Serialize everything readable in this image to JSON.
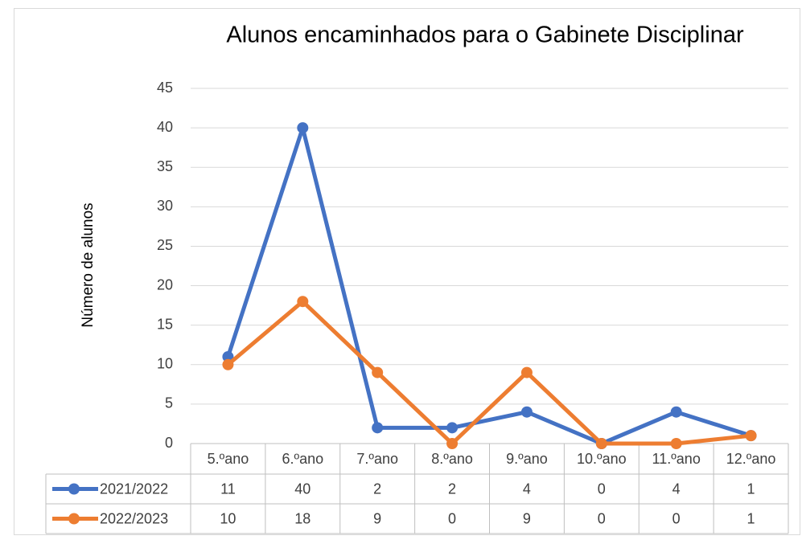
{
  "chart_data": {
    "type": "line",
    "title": "Alunos encaminhados para o Gabinete Disciplinar",
    "y_label": "Número de alunos",
    "categories": [
      "5.ºano",
      "6.ºano",
      "7.ºano",
      "8.ºano",
      "9.ºano",
      "10.ºano",
      "11.ºano",
      "12.ºano"
    ],
    "series": [
      {
        "name": "2021/2022",
        "color": "#4472c4",
        "values": [
          11,
          40,
          2,
          2,
          4,
          0,
          4,
          1
        ]
      },
      {
        "name": "2022/2023",
        "color": "#ed7d31",
        "values": [
          10,
          18,
          9,
          0,
          9,
          0,
          0,
          1
        ]
      }
    ],
    "ylim": [
      0,
      45
    ],
    "yticks": [
      0,
      5,
      10,
      15,
      20,
      25,
      30,
      35,
      40,
      45
    ],
    "grid": true,
    "data_table": true
  }
}
